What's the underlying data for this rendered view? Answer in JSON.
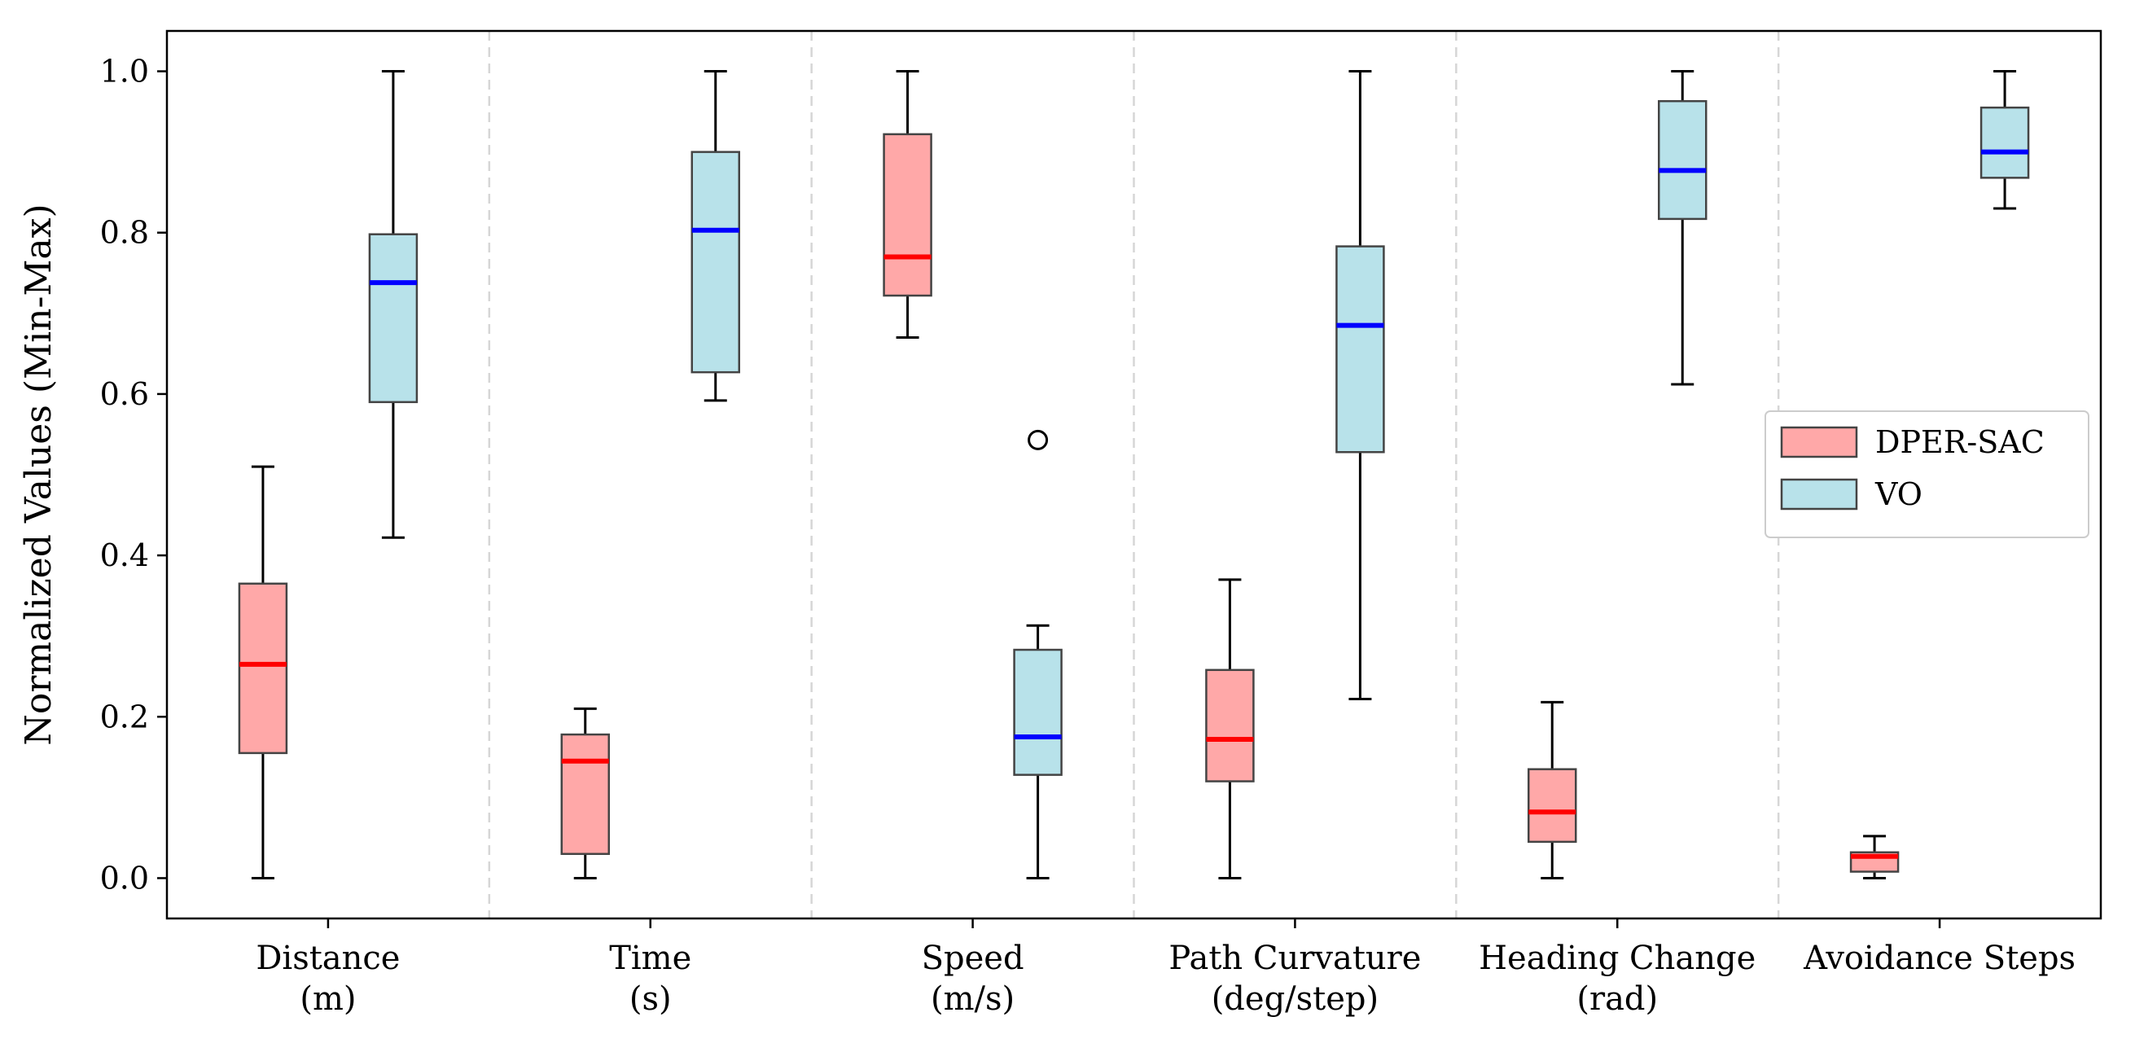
{
  "chart_data": {
    "type": "boxplot",
    "title": "",
    "ylabel": "Normalized Values (Min-Max)",
    "xlabel": "",
    "ylim": [
      -0.05,
      1.05
    ],
    "yticks": [
      "0.0",
      "0.2",
      "0.4",
      "0.6",
      "0.8",
      "1.0"
    ],
    "grid": false,
    "legend_position": "center-right",
    "categories": [
      {
        "label_line1": "Distance",
        "label_line2": "(m)"
      },
      {
        "label_line1": "Time",
        "label_line2": "(s)"
      },
      {
        "label_line1": "Speed",
        "label_line2": "(m/s)"
      },
      {
        "label_line1": "Path Curvature",
        "label_line2": "(deg/step)"
      },
      {
        "label_line1": "Heading Change",
        "label_line2": "(rad)"
      },
      {
        "label_line1": "Avoidance Steps",
        "label_line2": ""
      }
    ],
    "series": [
      {
        "name": "DPER-SAC",
        "fill": "#ffa8a8",
        "median_color": "#ff0000",
        "boxes": [
          {
            "whislo": 0.0,
            "q1": 0.155,
            "med": 0.265,
            "q3": 0.365,
            "whishi": 0.51,
            "fliers": []
          },
          {
            "whislo": 0.0,
            "q1": 0.03,
            "med": 0.145,
            "q3": 0.178,
            "whishi": 0.21,
            "fliers": []
          },
          {
            "whislo": 0.67,
            "q1": 0.722,
            "med": 0.77,
            "q3": 0.922,
            "whishi": 1.0,
            "fliers": []
          },
          {
            "whislo": 0.0,
            "q1": 0.12,
            "med": 0.172,
            "q3": 0.258,
            "whishi": 0.37,
            "fliers": []
          },
          {
            "whislo": 0.0,
            "q1": 0.045,
            "med": 0.082,
            "q3": 0.135,
            "whishi": 0.218,
            "fliers": []
          },
          {
            "whislo": 0.0,
            "q1": 0.008,
            "med": 0.027,
            "q3": 0.032,
            "whishi": 0.052,
            "fliers": []
          }
        ]
      },
      {
        "name": "VO",
        "fill": "#b8e2ea",
        "median_color": "#0000ff",
        "boxes": [
          {
            "whislo": 0.422,
            "q1": 0.59,
            "med": 0.738,
            "q3": 0.798,
            "whishi": 1.0,
            "fliers": []
          },
          {
            "whislo": 0.592,
            "q1": 0.627,
            "med": 0.803,
            "q3": 0.9,
            "whishi": 1.0,
            "fliers": []
          },
          {
            "whislo": 0.0,
            "q1": 0.128,
            "med": 0.175,
            "q3": 0.283,
            "whishi": 0.313,
            "fliers": [
              0.543
            ]
          },
          {
            "whislo": 0.222,
            "q1": 0.528,
            "med": 0.685,
            "q3": 0.783,
            "whishi": 1.0,
            "fliers": []
          },
          {
            "whislo": 0.612,
            "q1": 0.817,
            "med": 0.877,
            "q3": 0.963,
            "whishi": 1.0,
            "fliers": []
          },
          {
            "whislo": 0.83,
            "q1": 0.868,
            "med": 0.9,
            "q3": 0.955,
            "whishi": 1.0,
            "fliers": []
          }
        ]
      }
    ]
  }
}
